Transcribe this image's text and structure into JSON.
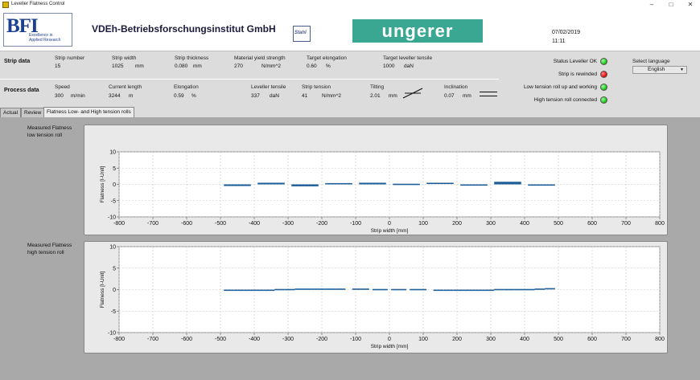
{
  "window": {
    "title": "Leveller Flatness Control"
  },
  "header": {
    "bfi_logo": "BFI",
    "bfi_tagline_1": "Excellence in",
    "bfi_tagline_2": "Applied Research",
    "institute": "VDEh-Betriebsforschungsinstitut GmbH",
    "stahl_logo": "Stahl",
    "ungerer_logo": "ungerer",
    "date": "07/02/2019",
    "time": "11:11"
  },
  "strip_data": {
    "title": "Strip data",
    "fields": [
      {
        "label": "Strip number",
        "value": "15",
        "unit": ""
      },
      {
        "label": "Strip width",
        "value": "1025",
        "unit": "mm"
      },
      {
        "label": "Strip thickness",
        "value": "0.080",
        "unit": "mm"
      },
      {
        "label": "Material yield strength",
        "value": "270",
        "unit": "N/mm^2"
      },
      {
        "label": "Target elongation",
        "value": "0.60",
        "unit": "%"
      },
      {
        "label": "Target leveller tensile",
        "value": "1000",
        "unit": "daN"
      }
    ]
  },
  "process_data": {
    "title": "Process data",
    "fields": [
      {
        "label": "Speed",
        "value": "300",
        "unit": "m/min"
      },
      {
        "label": "Current length",
        "value": "3244",
        "unit": "m"
      },
      {
        "label": "Elongation",
        "value": "0.59",
        "unit": "%"
      },
      {
        "label": "Leveller tensile",
        "value": "337",
        "unit": "daN"
      },
      {
        "label": "Strip tension",
        "value": "41",
        "unit": "N/mm^2"
      },
      {
        "label": "Tilting",
        "value": "2.01",
        "unit": "mm"
      },
      {
        "label": "Inclination",
        "value": "0.07",
        "unit": "mm"
      }
    ]
  },
  "status": [
    {
      "label": "Status Leveller OK",
      "color": "#22cc22"
    },
    {
      "label": "Strip is rewinded",
      "color": "#ee1111"
    },
    {
      "label": "Low tension roll up and working",
      "color": "#22cc22"
    },
    {
      "label": "High tension roll connected",
      "color": "#22cc22"
    }
  ],
  "language": {
    "label": "Select language",
    "value": "English"
  },
  "tabs": [
    {
      "label": "Actual",
      "active": false
    },
    {
      "label": "Review",
      "active": false
    },
    {
      "label": "Flatness Low- and High tension rolls",
      "active": true
    }
  ],
  "chart_data": [
    {
      "type": "bar",
      "title": "Measured Flatness low tension roll",
      "title_line1": "Measured Flatness",
      "title_line2": "low tension roll",
      "xlabel": "Strip width [mm]",
      "ylabel": "Flatness [I-Unit]",
      "xlim": [
        -800,
        800
      ],
      "ylim": [
        -10,
        10
      ],
      "xticks": [
        -800,
        -700,
        -600,
        -500,
        -400,
        -300,
        -200,
        -100,
        0,
        100,
        200,
        300,
        400,
        500,
        600,
        700,
        800
      ],
      "yticks": [
        -10,
        -5,
        0,
        5,
        10
      ],
      "grid": true,
      "color": "#1f5f99",
      "segments": [
        {
          "x0": -490,
          "x1": -410,
          "value": -0.5
        },
        {
          "x0": -390,
          "x1": -310,
          "value": 0.5
        },
        {
          "x0": -290,
          "x1": -210,
          "value": -0.6
        },
        {
          "x0": -190,
          "x1": -110,
          "value": 0.2
        },
        {
          "x0": -90,
          "x1": -10,
          "value": 0.5
        },
        {
          "x0": 10,
          "x1": 90,
          "value": 0.0
        },
        {
          "x0": 110,
          "x1": 190,
          "value": 0.3
        },
        {
          "x0": 210,
          "x1": 290,
          "value": -0.3
        },
        {
          "x0": 310,
          "x1": 390,
          "value": 0.8
        },
        {
          "x0": 410,
          "x1": 490,
          "value": -0.3
        }
      ]
    },
    {
      "type": "bar",
      "title": "Measured Flatness high tension roll",
      "title_line1": "Measured Flatness",
      "title_line2": "high tension roll",
      "xlabel": "Strip width [mm]",
      "ylabel": "Flatness [I-Unit]",
      "xlim": [
        -800,
        800
      ],
      "ylim": [
        -10,
        10
      ],
      "xticks": [
        -800,
        -700,
        -600,
        -500,
        -400,
        -300,
        -200,
        -100,
        0,
        100,
        200,
        300,
        400,
        500,
        600,
        700,
        800
      ],
      "yticks": [
        -10,
        -5,
        0,
        5,
        10
      ],
      "grid": true,
      "color": "#1f5f99",
      "segments": [
        {
          "x0": -490,
          "x1": -460,
          "value": -0.2
        },
        {
          "x0": -460,
          "x1": -430,
          "value": -0.2
        },
        {
          "x0": -430,
          "x1": -400,
          "value": -0.1
        },
        {
          "x0": -400,
          "x1": -370,
          "value": -0.1
        },
        {
          "x0": -370,
          "x1": -340,
          "value": -0.1
        },
        {
          "x0": -340,
          "x1": -310,
          "value": 0.0
        },
        {
          "x0": -310,
          "x1": -280,
          "value": 0.0
        },
        {
          "x0": -280,
          "x1": -250,
          "value": 0.1
        },
        {
          "x0": -250,
          "x1": -220,
          "value": 0.1
        },
        {
          "x0": -220,
          "x1": -190,
          "value": 0.1
        },
        {
          "x0": -190,
          "x1": -160,
          "value": 0.1
        },
        {
          "x0": -160,
          "x1": -130,
          "value": 0.1
        },
        {
          "x0": -110,
          "x1": -60,
          "value": 0.1
        },
        {
          "x0": -50,
          "x1": -5,
          "value": 0.0
        },
        {
          "x0": 5,
          "x1": 50,
          "value": 0.0
        },
        {
          "x0": 60,
          "x1": 110,
          "value": 0.0
        },
        {
          "x0": 130,
          "x1": 160,
          "value": -0.1
        },
        {
          "x0": 160,
          "x1": 190,
          "value": -0.1
        },
        {
          "x0": 190,
          "x1": 220,
          "value": -0.1
        },
        {
          "x0": 220,
          "x1": 250,
          "value": -0.1
        },
        {
          "x0": 250,
          "x1": 280,
          "value": -0.1
        },
        {
          "x0": 280,
          "x1": 310,
          "value": -0.1
        },
        {
          "x0": 310,
          "x1": 340,
          "value": 0.0
        },
        {
          "x0": 340,
          "x1": 370,
          "value": 0.0
        },
        {
          "x0": 370,
          "x1": 400,
          "value": 0.0
        },
        {
          "x0": 400,
          "x1": 430,
          "value": 0.0
        },
        {
          "x0": 430,
          "x1": 460,
          "value": 0.1
        },
        {
          "x0": 460,
          "x1": 490,
          "value": 0.2
        }
      ]
    }
  ]
}
